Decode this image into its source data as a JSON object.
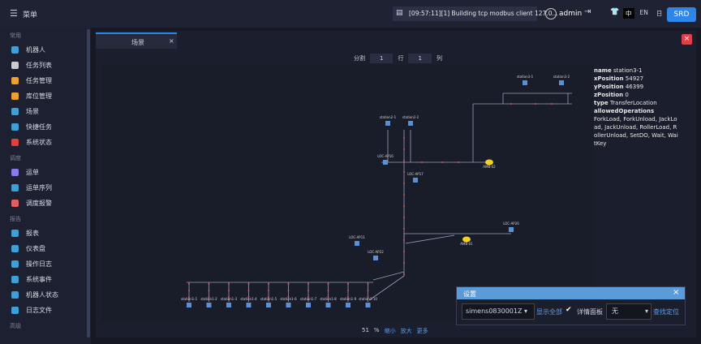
{
  "header": {
    "menu": "菜单",
    "log": "[09:57:11][1] Building tcp modbus client 127.0...",
    "user": "admin",
    "languages": [
      "中",
      "EN",
      "日"
    ],
    "brand": "SRD"
  },
  "sidebar": {
    "sections": [
      {
        "title": "常用",
        "items": [
          "机器人",
          "任务列表",
          "任务管理",
          "库位管理",
          "场景",
          "快捷任务",
          "系统状态"
        ]
      },
      {
        "title": "调度",
        "items": [
          "运单",
          "运单序列",
          "调度报警"
        ]
      },
      {
        "title": "报告",
        "items": [
          "报表",
          "仪表盘",
          "操作日志",
          "系统事件",
          "机器人状态",
          "日志文件"
        ]
      },
      {
        "title": "高级",
        "items": []
      }
    ]
  },
  "tab": {
    "title": "场景"
  },
  "toolbar": {
    "split_label": "分割",
    "rows": "1",
    "rows_label": "行",
    "cols": "1",
    "cols_label": "列"
  },
  "details": {
    "fields": [
      {
        "key": "name",
        "value": "station3-1"
      },
      {
        "key": "xPosition",
        "value": "54927"
      },
      {
        "key": "yPosition",
        "value": "46399"
      },
      {
        "key": "zPosition",
        "value": "0"
      },
      {
        "key": "type",
        "value": "TransferLocation"
      }
    ],
    "allowed_label": "allowedOperations",
    "allowed": "ForkLoad, ForkUnload, JackLoad, JackUnload, RollerLoad, RollerUnload, SetDO, Wait, WaitKey"
  },
  "map": {
    "stations": [
      "station1-1",
      "station1-2",
      "station1-3",
      "station1-4",
      "station1-5",
      "station1-6",
      "station1-7",
      "station1-8",
      "station1-9",
      "station1-10"
    ],
    "locations": [
      "station3-1",
      "station3-2",
      "station2-1",
      "station2-2",
      "LOC-AP16",
      "LOC-AP17",
      "LOC-AP11",
      "LOC-AP22",
      "LOC-AP26"
    ],
    "robots": [
      "AMB-02",
      "AMB-01"
    ]
  },
  "zoom": {
    "value": "51",
    "unit": "%",
    "zoom_out": "缩小",
    "zoom_in": "放大",
    "more": "更多"
  },
  "settings": {
    "title": "设置",
    "robot": "simens0830001Z",
    "show_all": "显示全部",
    "detail_panel": "详情面板",
    "filter": "无",
    "locate": "查找定位"
  }
}
